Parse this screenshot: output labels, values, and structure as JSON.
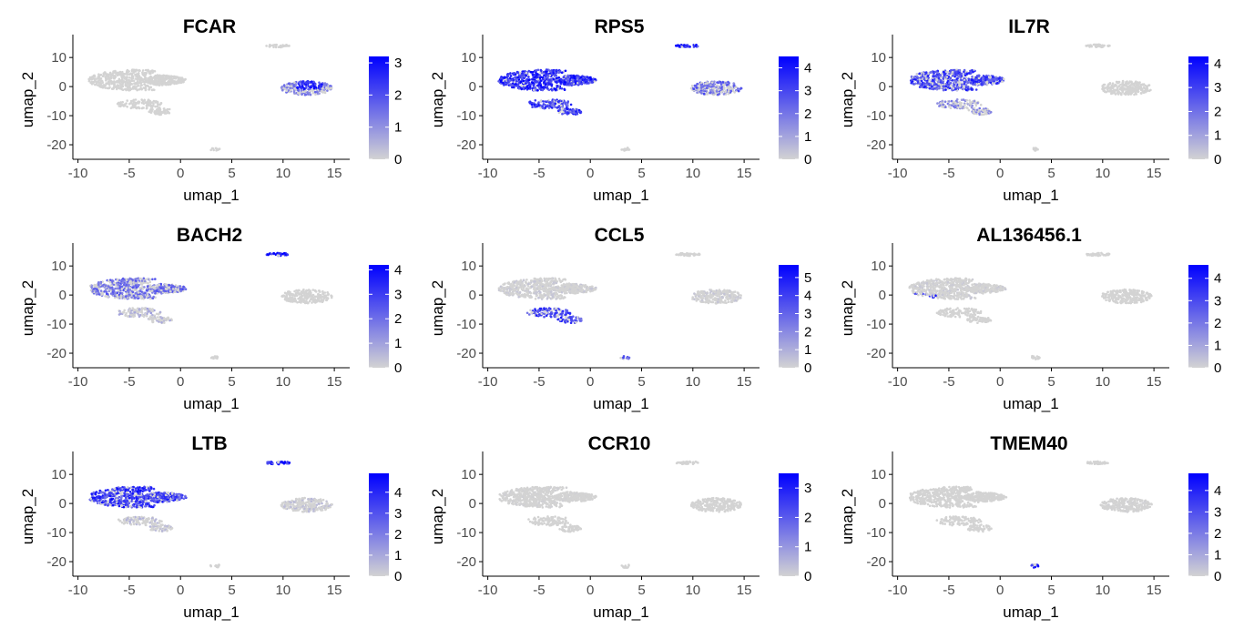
{
  "chart_data": [
    {
      "type": "scatter",
      "title": "FCAR",
      "xlabel": "umap_1",
      "ylabel": "umap_2",
      "xlim": [
        -10.5,
        16.5
      ],
      "ylim": [
        -25,
        16
      ],
      "x_ticks": [
        "-10",
        "-5",
        "0",
        "5",
        "10",
        "15"
      ],
      "y_ticks": [
        "10",
        "0",
        "-10",
        "-20"
      ],
      "color_scale": {
        "low": "#d3d3d3",
        "high": "#0000ff",
        "max": 3.2,
        "ticks": [
          "3",
          "2",
          "1",
          "0"
        ]
      },
      "expression": {
        "main": 0.0,
        "lower": 0.0,
        "top": 0.0,
        "right": 1.3,
        "bottom": 0.0
      },
      "high_spot": "right",
      "legend": "right"
    },
    {
      "type": "scatter",
      "title": "RPS5",
      "xlabel": "umap_1",
      "ylabel": "umap_2",
      "xlim": [
        -10.5,
        16.5
      ],
      "ylim": [
        -25,
        16
      ],
      "x_ticks": [
        "-10",
        "-5",
        "0",
        "5",
        "10",
        "15"
      ],
      "y_ticks": [
        "10",
        "0",
        "-10",
        "-20"
      ],
      "color_scale": {
        "low": "#d3d3d3",
        "high": "#0000ff",
        "max": 4.5,
        "ticks": [
          "4",
          "3",
          "2",
          "1",
          "0"
        ]
      },
      "expression": {
        "main": 3.4,
        "lower": 3.0,
        "top": 3.8,
        "right": 2.2,
        "bottom": 0.0
      },
      "high_spot": "",
      "legend": "right"
    },
    {
      "type": "scatter",
      "title": "IL7R",
      "xlabel": "umap_1",
      "ylabel": "umap_2",
      "xlim": [
        -10.5,
        16.5
      ],
      "ylim": [
        -25,
        16
      ],
      "x_ticks": [
        "-10",
        "-5",
        "0",
        "5",
        "10",
        "15"
      ],
      "y_ticks": [
        "10",
        "0",
        "-10",
        "-20"
      ],
      "color_scale": {
        "low": "#d3d3d3",
        "high": "#0000ff",
        "max": 4.3,
        "ticks": [
          "4",
          "3",
          "2",
          "1",
          "0"
        ]
      },
      "expression": {
        "main": 2.8,
        "lower": 1.5,
        "top": 0.0,
        "right": 0.0,
        "bottom": 0.0
      },
      "high_spot": "",
      "legend": "right"
    },
    {
      "type": "scatter",
      "title": "BACH2",
      "xlabel": "umap_1",
      "ylabel": "umap_2",
      "xlim": [
        -10.5,
        16.5
      ],
      "ylim": [
        -25,
        16
      ],
      "x_ticks": [
        "-10",
        "-5",
        "0",
        "5",
        "10",
        "15"
      ],
      "y_ticks": [
        "10",
        "0",
        "-10",
        "-20"
      ],
      "color_scale": {
        "low": "#d3d3d3",
        "high": "#0000ff",
        "max": 4.2,
        "ticks": [
          "4",
          "3",
          "2",
          "1",
          "0"
        ]
      },
      "expression": {
        "main": 2.0,
        "lower": 0.8,
        "top": 3.6,
        "right": 0.0,
        "bottom": 0.0
      },
      "high_spot": "",
      "legend": "right"
    },
    {
      "type": "scatter",
      "title": "CCL5",
      "xlabel": "umap_1",
      "ylabel": "umap_2",
      "xlim": [
        -10.5,
        16.5
      ],
      "ylim": [
        -25,
        16
      ],
      "x_ticks": [
        "-10",
        "-5",
        "0",
        "5",
        "10",
        "15"
      ],
      "y_ticks": [
        "10",
        "0",
        "-10",
        "-20"
      ],
      "color_scale": {
        "low": "#d3d3d3",
        "high": "#0000ff",
        "max": 5.7,
        "ticks": [
          "5",
          "4",
          "3",
          "2",
          "1",
          "0"
        ]
      },
      "expression": {
        "main": 0.3,
        "lower": 3.8,
        "top": 0.0,
        "right": 0.3,
        "bottom": 3.5
      },
      "high_spot": "",
      "legend": "right"
    },
    {
      "type": "scatter",
      "title": "AL136456.1",
      "xlabel": "umap_1",
      "ylabel": "umap_2",
      "xlim": [
        -10.5,
        16.5
      ],
      "ylim": [
        -25,
        16
      ],
      "x_ticks": [
        "-10",
        "-5",
        "0",
        "5",
        "10",
        "15"
      ],
      "y_ticks": [
        "10",
        "0",
        "-10",
        "-20"
      ],
      "color_scale": {
        "low": "#d3d3d3",
        "high": "#0000ff",
        "max": 4.6,
        "ticks": [
          "4",
          "3",
          "2",
          "1",
          "0"
        ]
      },
      "expression": {
        "main": 0.2,
        "lower": 0.0,
        "top": 0.0,
        "right": 0.0,
        "bottom": 0.0
      },
      "high_spot": "main-left",
      "legend": "right"
    },
    {
      "type": "scatter",
      "title": "LTB",
      "xlabel": "umap_1",
      "ylabel": "umap_2",
      "xlim": [
        -10.5,
        16.5
      ],
      "ylim": [
        -25,
        16
      ],
      "x_ticks": [
        "-10",
        "-5",
        "0",
        "5",
        "10",
        "15"
      ],
      "y_ticks": [
        "10",
        "0",
        "-10",
        "-20"
      ],
      "color_scale": {
        "low": "#d3d3d3",
        "high": "#0000ff",
        "max": 4.9,
        "ticks": [
          "4",
          "3",
          "2",
          "1",
          "0"
        ]
      },
      "expression": {
        "main": 3.4,
        "lower": 0.6,
        "top": 4.0,
        "right": 0.5,
        "bottom": 0.0
      },
      "high_spot": "",
      "legend": "right"
    },
    {
      "type": "scatter",
      "title": "CCR10",
      "xlabel": "umap_1",
      "ylabel": "umap_2",
      "xlim": [
        -10.5,
        16.5
      ],
      "ylim": [
        -25,
        16
      ],
      "x_ticks": [
        "-10",
        "-5",
        "0",
        "5",
        "10",
        "15"
      ],
      "y_ticks": [
        "10",
        "0",
        "-10",
        "-20"
      ],
      "color_scale": {
        "low": "#d3d3d3",
        "high": "#0000ff",
        "max": 3.5,
        "ticks": [
          "3",
          "2",
          "1",
          "0"
        ]
      },
      "expression": {
        "main": 0.05,
        "lower": 0.0,
        "top": 0.0,
        "right": 0.0,
        "bottom": 0.0
      },
      "high_spot": "",
      "legend": "right"
    },
    {
      "type": "scatter",
      "title": "TMEM40",
      "xlabel": "umap_1",
      "ylabel": "umap_2",
      "xlim": [
        -10.5,
        16.5
      ],
      "ylim": [
        -25,
        16
      ],
      "x_ticks": [
        "-10",
        "-5",
        "0",
        "5",
        "10",
        "15"
      ],
      "y_ticks": [
        "10",
        "0",
        "-10",
        "-20"
      ],
      "color_scale": {
        "low": "#d3d3d3",
        "high": "#0000ff",
        "max": 4.8,
        "ticks": [
          "4",
          "3",
          "2",
          "1",
          "0"
        ]
      },
      "expression": {
        "main": 0.0,
        "lower": 0.0,
        "top": 0.0,
        "right": 0.05,
        "bottom": 3.6
      },
      "high_spot": "",
      "legend": "right"
    }
  ]
}
